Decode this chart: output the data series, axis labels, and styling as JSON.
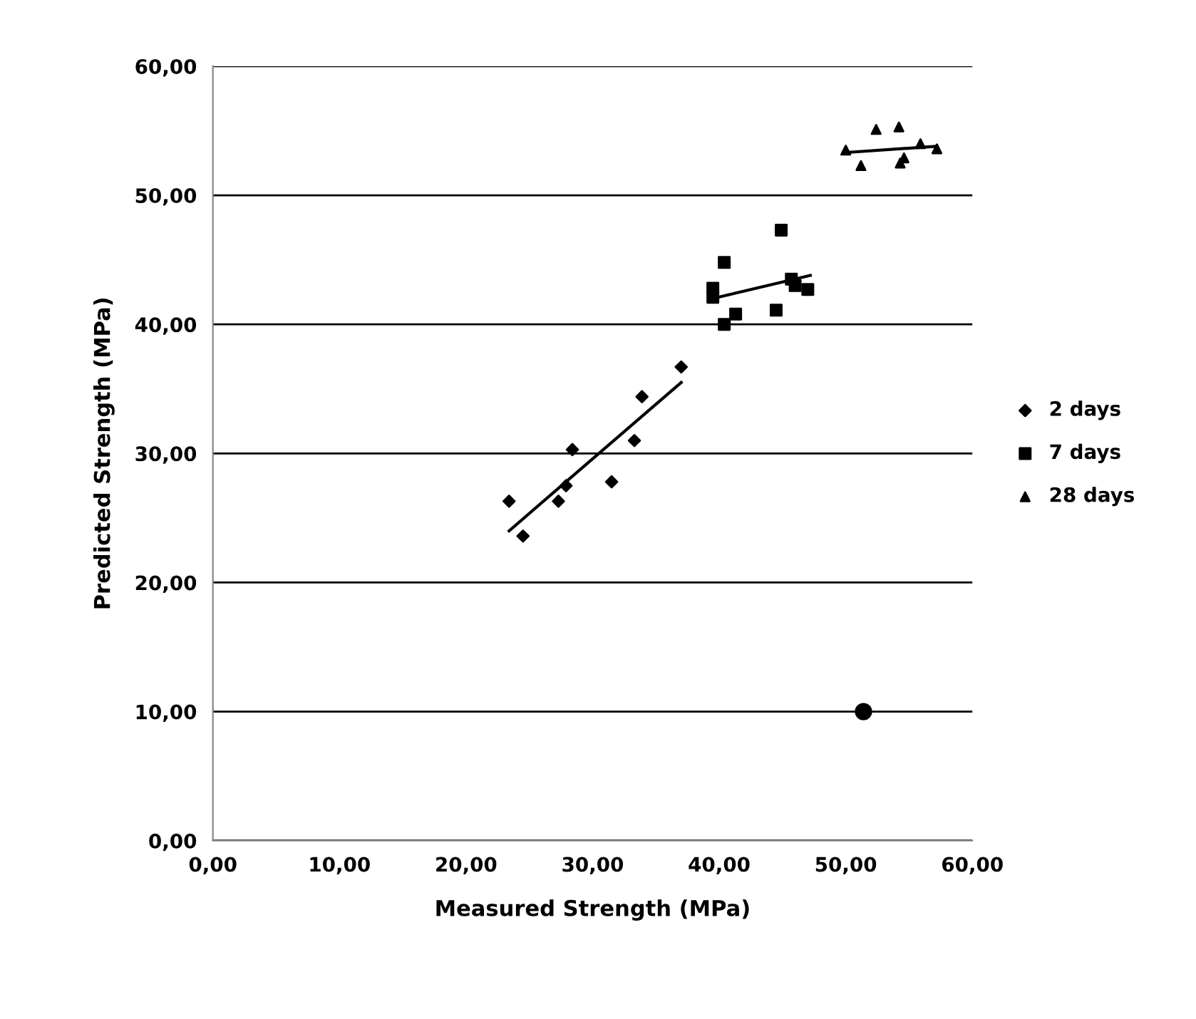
{
  "chart_data": {
    "type": "scatter",
    "xlabel": "Measured Strength (MPa)",
    "ylabel": "Predicted Strength (MPa)",
    "xlim": [
      0,
      60
    ],
    "ylim": [
      0,
      60
    ],
    "xticks": [
      {
        "value": 0,
        "label": "0,00"
      },
      {
        "value": 10,
        "label": "10,00"
      },
      {
        "value": 20,
        "label": "20,00"
      },
      {
        "value": 30,
        "label": "30,00"
      },
      {
        "value": 40,
        "label": "40,00"
      },
      {
        "value": 50,
        "label": "50,00"
      },
      {
        "value": 60,
        "label": "60,00"
      }
    ],
    "yticks": [
      {
        "value": 0,
        "label": "0,00"
      },
      {
        "value": 10,
        "label": "10,00"
      },
      {
        "value": 20,
        "label": "20,00"
      },
      {
        "value": 30,
        "label": "30,00"
      },
      {
        "value": 40,
        "label": "40,00"
      },
      {
        "value": 50,
        "label": "50,00"
      },
      {
        "value": 60,
        "label": "60,00"
      }
    ],
    "grid": "y",
    "legend": "right",
    "series": [
      {
        "name": "2 days",
        "color": "#000000",
        "marker": "diamond",
        "x": [
          23.4,
          24.5,
          27.3,
          27.9,
          28.4,
          31.5,
          33.3,
          33.9,
          37.0
        ],
        "values": [
          26.3,
          23.6,
          26.3,
          27.5,
          30.3,
          27.8,
          31.0,
          34.4,
          36.7
        ]
      },
      {
        "name": "7 days",
        "color": "#000000",
        "marker": "square",
        "x": [
          39.5,
          39.5,
          40.4,
          40.4,
          41.3,
          44.9,
          44.5,
          45.7,
          46.0,
          47.0
        ],
        "values": [
          42.8,
          42.1,
          44.8,
          40.0,
          40.8,
          47.3,
          41.1,
          43.5,
          43.0,
          42.7
        ]
      },
      {
        "name": "28 days",
        "color": "#000000",
        "marker": "triangle",
        "x": [
          50.0,
          51.2,
          52.4,
          54.2,
          54.3,
          54.6,
          55.9,
          57.2
        ],
        "values": [
          53.5,
          52.3,
          55.1,
          55.3,
          52.5,
          52.9,
          54.0,
          53.6
        ]
      },
      {
        "type": "line",
        "color": "#000000",
        "x": [
          23.4,
          37.0
        ],
        "values": [
          24.0,
          35.5
        ]
      },
      {
        "type": "line",
        "color": "#000000",
        "x": [
          39.9,
          47.2
        ],
        "values": [
          42.1,
          43.8
        ]
      },
      {
        "type": "line",
        "color": "#000000",
        "x": [
          49.8,
          57.2
        ],
        "values": [
          53.3,
          53.8
        ]
      },
      {
        "color": "#000000",
        "marker": "circle",
        "x": [
          51.4
        ],
        "values": [
          10.0
        ]
      }
    ]
  }
}
